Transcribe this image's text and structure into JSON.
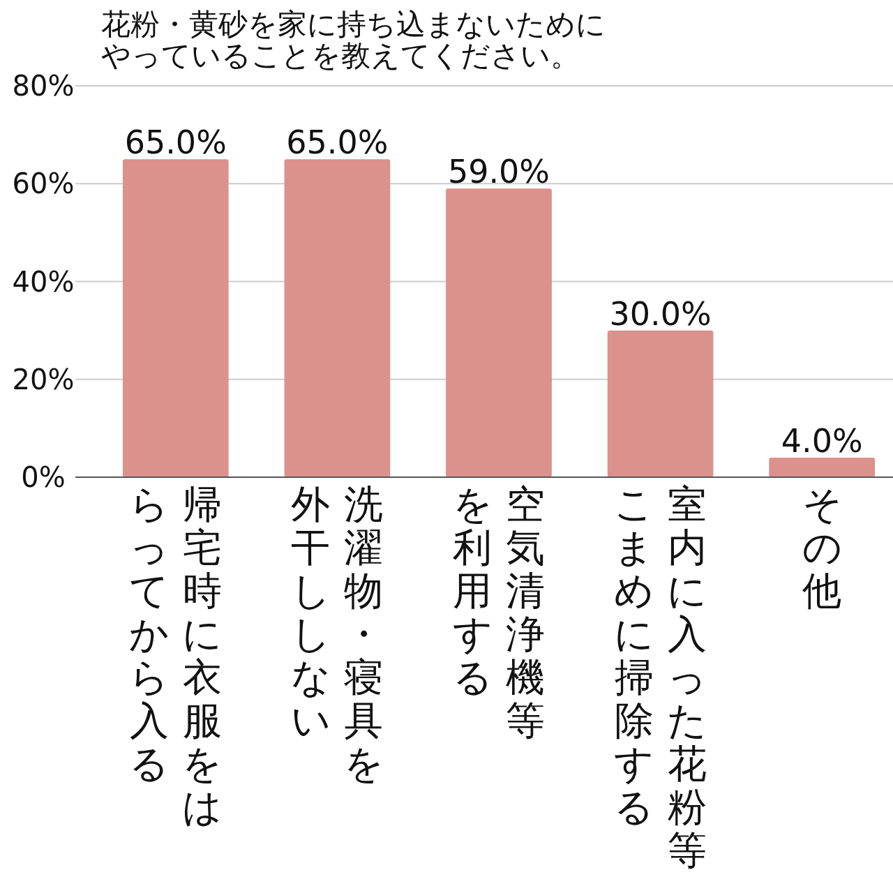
{
  "chart_data": {
    "type": "bar",
    "title": "花粉・黄砂を家に持ち込まないためにやっていることを教えてください。",
    "categories": [
      "帰宅時に衣服をはらってから入る",
      "洗濯物・寝具を外干ししない",
      "空気清浄機等を利用する",
      "室内に入った花粉等こまめに掃除する",
      "その他"
    ],
    "values": [
      65.0,
      65.0,
      59.0,
      30.0,
      4.0
    ],
    "value_labels": [
      "65.0%",
      "65.0%",
      "59.0%",
      "30.0%",
      "4.0%"
    ],
    "color": "#db918c",
    "ylim": [
      0,
      80
    ],
    "yticks": [
      {
        "value": 0,
        "label": "0%"
      },
      {
        "value": 20,
        "label": "20%"
      },
      {
        "value": 40,
        "label": "40%"
      },
      {
        "value": 60,
        "label": "60%"
      },
      {
        "value": 80,
        "label": "80%"
      }
    ],
    "grid": "y"
  }
}
